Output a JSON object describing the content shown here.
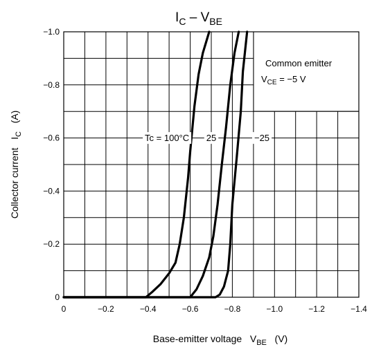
{
  "chart_data": {
    "type": "line",
    "title": {
      "main": "I",
      "sub1": "C",
      "mid": " – V",
      "sub2": "BE"
    },
    "xlabel": {
      "main": "Base-emitter voltage   V",
      "sub": "BE",
      "unit": "   (V)"
    },
    "ylabel": {
      "main": "Collector current   I",
      "sub": "C",
      "unit": "   (A)"
    },
    "xlim": [
      0,
      -1.4
    ],
    "ylim": [
      0,
      -1.0
    ],
    "x_ticks": [
      {
        "value": 0,
        "label": "0"
      },
      {
        "value": -0.2,
        "label": "−0.2"
      },
      {
        "value": -0.4,
        "label": "−0.4"
      },
      {
        "value": -0.6,
        "label": "−0.6"
      },
      {
        "value": -0.8,
        "label": "−0.8"
      },
      {
        "value": -1.0,
        "label": "−1.0"
      },
      {
        "value": -1.2,
        "label": "−1.2"
      },
      {
        "value": -1.4,
        "label": "−1.4"
      }
    ],
    "y_ticks": [
      {
        "value": 0,
        "label": "0"
      },
      {
        "value": -0.2,
        "label": "−0.2"
      },
      {
        "value": -0.4,
        "label": "−0.4"
      },
      {
        "value": -0.6,
        "label": "−0.6"
      },
      {
        "value": -0.8,
        "label": "−0.8"
      },
      {
        "value": -1.0,
        "label": "−1.0"
      }
    ],
    "grid": {
      "x_step": -0.1,
      "y_step": -0.1
    },
    "annotation_box": {
      "line1": "Common emitter",
      "line2_main": "V",
      "line2_sub": "CE",
      "line2_rest": " = −5 V"
    },
    "series": [
      {
        "label": "Tc = 100°C",
        "label_at": [
          -0.49,
          -0.6
        ],
        "points": [
          [
            0,
            0
          ],
          [
            -0.39,
            0
          ],
          [
            -0.42,
            -0.02
          ],
          [
            -0.46,
            -0.05
          ],
          [
            -0.5,
            -0.09
          ],
          [
            -0.53,
            -0.13
          ],
          [
            -0.55,
            -0.2
          ],
          [
            -0.57,
            -0.3
          ],
          [
            -0.59,
            -0.45
          ],
          [
            -0.6,
            -0.55
          ],
          [
            -0.62,
            -0.72
          ],
          [
            -0.64,
            -0.84
          ],
          [
            -0.66,
            -0.92
          ],
          [
            -0.69,
            -1.0
          ]
        ]
      },
      {
        "label": "25",
        "label_at": [
          -0.7,
          -0.6
        ],
        "points": [
          [
            0,
            0
          ],
          [
            -0.6,
            0
          ],
          [
            -0.63,
            -0.03
          ],
          [
            -0.66,
            -0.08
          ],
          [
            -0.69,
            -0.15
          ],
          [
            -0.71,
            -0.23
          ],
          [
            -0.73,
            -0.35
          ],
          [
            -0.75,
            -0.5
          ],
          [
            -0.77,
            -0.64
          ],
          [
            -0.79,
            -0.8
          ],
          [
            -0.81,
            -0.92
          ],
          [
            -0.83,
            -1.0
          ]
        ]
      },
      {
        "label": "−25",
        "label_at": [
          -0.94,
          -0.6
        ],
        "points": [
          [
            0,
            0
          ],
          [
            -0.72,
            0
          ],
          [
            -0.74,
            -0.01
          ],
          [
            -0.76,
            -0.04
          ],
          [
            -0.78,
            -0.1
          ],
          [
            -0.79,
            -0.2
          ],
          [
            -0.8,
            -0.35
          ],
          [
            -0.82,
            -0.52
          ],
          [
            -0.84,
            -0.7
          ],
          [
            -0.85,
            -0.85
          ],
          [
            -0.87,
            -1.0
          ]
        ]
      }
    ]
  }
}
